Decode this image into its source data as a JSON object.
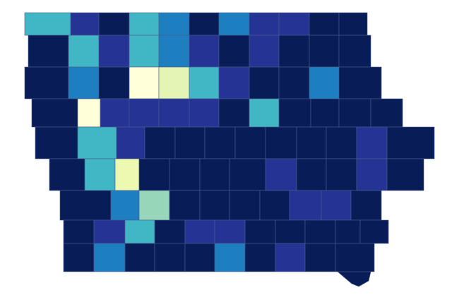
{
  "map": {
    "counties": [
      [
        "#41b6c4",
        "#253494",
        "#081d58",
        "#41b6c4",
        "#1d7fbf",
        "#081d58",
        "#1d7fbf",
        "#253494",
        "#253494",
        "#081d58",
        "#081d58"
      ],
      [
        "#081d58",
        "#41b6c4",
        "#253494",
        "#41b6c4",
        "#1d7fbf",
        "#253494",
        "#081d58",
        "#253494",
        "#081d58",
        "#081d58",
        "#081d58"
      ],
      [
        "#081d58",
        "#1d7fbf",
        "#081d58",
        "#ffffd9",
        "#e3f4b5",
        "#41b6c4",
        "#253494",
        "#081d58",
        "#081d58",
        "#1d7fbf",
        "#081d58"
      ],
      [
        "#081d58",
        "#ffffd9",
        "#253494",
        "#253494",
        "#253494",
        "#253494",
        "#081d58",
        "#41b6c4",
        "#081d58",
        "#081d58",
        "#081d58",
        "#081d58"
      ],
      [
        "#081d58",
        "#41b6c4",
        "#253494",
        "#081d58",
        "#081d58",
        "#081d58",
        "#081d58",
        "#081d58",
        "#081d58",
        "#081d58",
        "#253494",
        "#081d58"
      ],
      [
        "#081d58",
        "#41b6c4",
        "#edf8b1",
        "#081d58",
        "#081d58",
        "#081d58",
        "#081d58",
        "#253494",
        "#081d58",
        "#081d58",
        "#253494",
        "#081d58"
      ],
      [
        "#081d58",
        "#1d7fbf",
        "#97d6b9",
        "#081d58",
        "#081d58",
        "#081d58",
        "#081d58",
        "#253494",
        "#253494",
        "#081d58"
      ],
      [
        "#081d58",
        "#253494",
        "#41b6c4",
        "#081d58",
        "#253494",
        "#253494",
        "#081d58",
        "#081d58",
        "#081d58",
        "#081d58",
        "#081d58"
      ],
      [
        "#081d58",
        "#1d7fbf",
        "#081d58",
        "#081d58",
        "#081d58",
        "#1d7fbf",
        "#081d58",
        "#253494",
        "#081d58",
        "#081d58"
      ]
    ]
  }
}
